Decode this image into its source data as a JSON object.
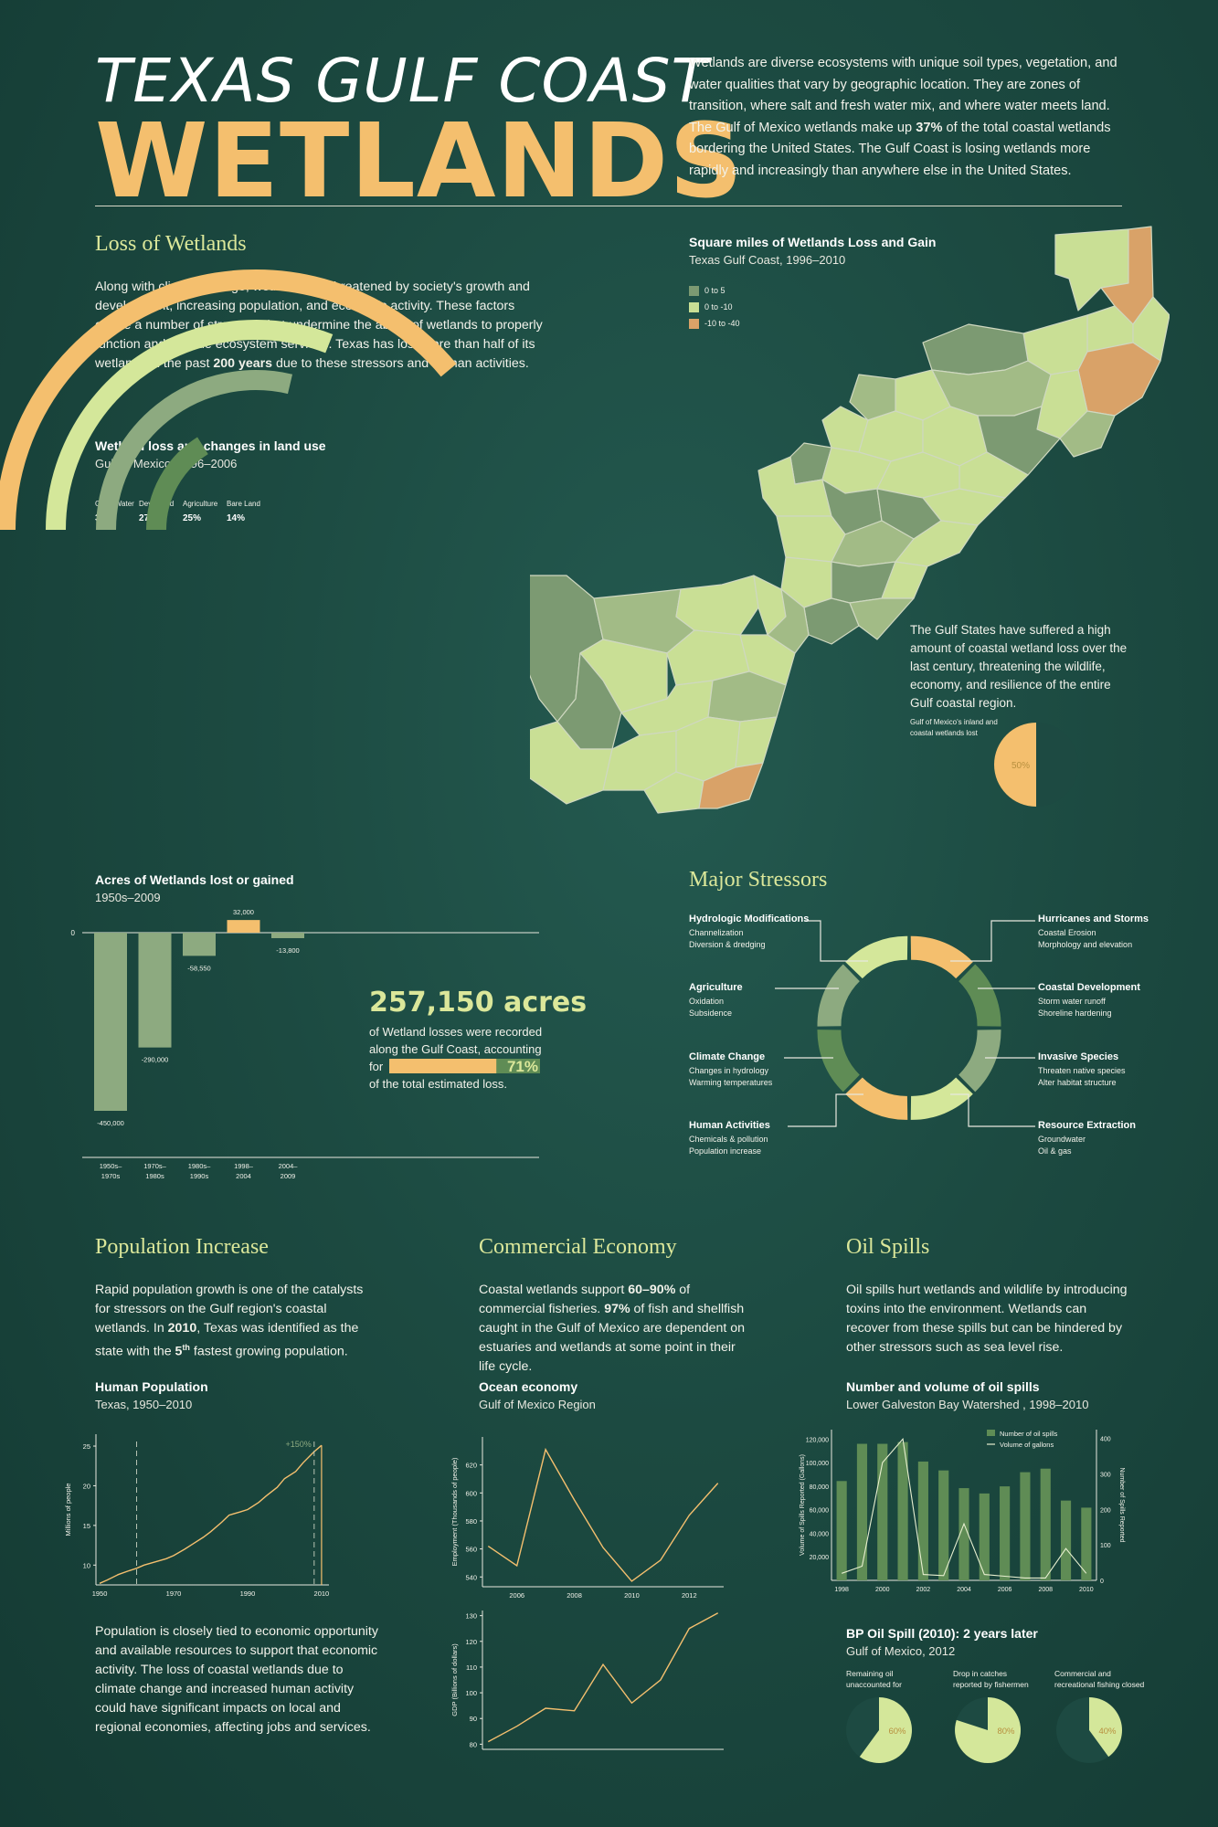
{
  "header": {
    "title_line1": "TEXAS GULF COAST",
    "title_line2": "WETLANDS",
    "intro_part1": "Wetlands are diverse ecosystems with unique soil types, vegetation, and water qualities that vary by geographic location. They are zones of transition, where salt and fresh water mix, and where water meets land. The Gulf of Mexico wetlands make up ",
    "intro_bold": "37%",
    "intro_part2": " of the total coastal wetlands bordering the United States. The Gulf Coast is losing wetlands more rapidly and increasingly than anywhere else in the United States."
  },
  "colors": {
    "background": "#1c4a41",
    "orange": "#f4bf6e",
    "light_green": "#d4e79a",
    "mid_green": "#8daa80",
    "dark_green": "#5f8c55",
    "heading": "#dbe79a"
  },
  "loss": {
    "heading": "Loss of Wetlands",
    "para1": "Along with climate change, wetlands are threatened by society's growth and development, increasing population, and economic activity. These factors create a number of stressors that undermine the ability of wetlands to properly function and provide ecosystem services. Texas has lost more than half of its wetlands in the past ",
    "para_bold": "200 years",
    "para2": " due to these stressors and human activities."
  },
  "map": {
    "title": "Square miles of Wetlands Loss and Gain",
    "subtitle": "Texas Gulf Coast, 1996–2010",
    "legend": [
      {
        "label": "0 to 5",
        "color": "#7c9a72"
      },
      {
        "label": "0 to -10",
        "color": "#c9df95"
      },
      {
        "label": "-10 to -40",
        "color": "#d9a268"
      }
    ],
    "note": "The Gulf States have suffered a high amount of coastal wetland loss over the last century, threatening the wildlife, economy, and resilience of the entire Gulf coastal region."
  },
  "chart_data": [
    {
      "type": "radial-bar",
      "title": "Wetland loss and changes in land use",
      "subtitle": "Gulf of Mexico, 1996–2006",
      "categories": [
        "Open Water",
        "Developed",
        "Agriculture",
        "Bare Land"
      ],
      "values": [
        34,
        27,
        25,
        14
      ],
      "labels": [
        "34%",
        "27%",
        "25%",
        "14%"
      ],
      "colors": [
        "#f4bf6e",
        "#d4e79a",
        "#8daa80",
        "#5f8c55"
      ]
    },
    {
      "type": "bar",
      "title": "Acres of Wetlands lost or gained",
      "subtitle": "1950s–2009",
      "categories": [
        "1950s–1970s",
        "1970s–1980s",
        "1980s–1990s",
        "1998–2004",
        "2004–2009"
      ],
      "values": [
        -450000,
        -290000,
        -58550,
        32000,
        -13800
      ],
      "value_labels": [
        "-450,000",
        "-290,000",
        "-58,550",
        "32,000",
        "-13,800"
      ],
      "zero_label": "0",
      "colors": [
        "#8daa80",
        "#8daa80",
        "#8daa80",
        "#f4bf6e",
        "#8daa80"
      ]
    },
    {
      "type": "pie",
      "title": "Gulf of Mexico's inland and coastal wetlands lost",
      "values": [
        50
      ],
      "labels": [
        "50%"
      ],
      "colors": [
        "#f4bf6e",
        "#1d4a42"
      ]
    },
    {
      "type": "line",
      "title": "Human Population",
      "subtitle": "Texas, 1950–2010",
      "ylabel": "Millions of people",
      "annotation": "+150%",
      "x": [
        1950,
        1952,
        1955,
        1958,
        1960,
        1962,
        1965,
        1968,
        1970,
        1973,
        1975,
        1978,
        1980,
        1983,
        1985,
        1988,
        1990,
        1993,
        1995,
        1998,
        2000,
        2003,
        2005,
        2008,
        2010
      ],
      "y": [
        7.7,
        8.1,
        8.8,
        9.3,
        9.6,
        10.0,
        10.4,
        10.8,
        11.2,
        12.0,
        12.6,
        13.5,
        14.2,
        15.4,
        16.3,
        16.7,
        17.0,
        17.9,
        18.7,
        19.8,
        20.9,
        21.8,
        22.9,
        24.3,
        25.1
      ],
      "xticks": [
        1950,
        1970,
        1990,
        2010
      ],
      "yticks": [
        10,
        15,
        20,
        25
      ],
      "xlim": [
        1949,
        2012
      ],
      "ylim": [
        7.5,
        26.5
      ]
    },
    {
      "type": "line",
      "title": "Ocean economy",
      "subtitle": "Gulf of Mexico Region",
      "ylabel": "Employment (Thousands of people)",
      "x": [
        2005,
        2006,
        2007,
        2008,
        2009,
        2010,
        2011,
        2012,
        2013
      ],
      "y": [
        562,
        548,
        631,
        595,
        561,
        537,
        552,
        584,
        607
      ],
      "xticks": [
        2006,
        2008,
        2010,
        2012
      ],
      "yticks": [
        540,
        560,
        580,
        600,
        620
      ],
      "xlim": [
        2004.8,
        2013.2
      ],
      "ylim": [
        533,
        640
      ]
    },
    {
      "type": "line",
      "ylabel": "GDP (Billions of dollars)",
      "x": [
        2005,
        2006,
        2007,
        2008,
        2009,
        2010,
        2011,
        2012,
        2013
      ],
      "y": [
        81,
        87,
        94,
        93,
        111,
        96,
        105,
        125,
        131
      ],
      "yticks": [
        80,
        90,
        100,
        110,
        120,
        130
      ],
      "xlim": [
        2004.8,
        2013.2
      ],
      "ylim": [
        78,
        132
      ]
    },
    {
      "type": "bar",
      "title": "Number and volume of oil spills",
      "subtitle": "Lower Galveston Bay Watershed , 1998–2010",
      "ylabel_left": "Volume of Spills Reported (Gallons)",
      "ylabel_right": "Number of Spills Reported",
      "x": [
        1998,
        1999,
        2000,
        2001,
        2002,
        2003,
        2004,
        2005,
        2006,
        2007,
        2008,
        2009,
        2010
      ],
      "xticks": [
        1998,
        2000,
        2002,
        2004,
        2006,
        2008,
        2010
      ],
      "series": [
        {
          "name": "Number of oil spills",
          "values": [
            280,
            385,
            385,
            390,
            335,
            310,
            260,
            245,
            265,
            305,
            315,
            225,
            205
          ]
        },
        {
          "name": "Volume of gallons",
          "values": [
            6000,
            12000,
            100000,
            120000,
            5000,
            4000,
            48000,
            5000,
            3500,
            2000,
            2000,
            27000,
            6000
          ]
        }
      ],
      "yticks_left": [
        20000,
        40000,
        60000,
        80000,
        100000,
        120000
      ],
      "yticks_left_labels": [
        "20,000",
        "40,000",
        "60,000",
        "80,000",
        "100,000",
        "120,000"
      ],
      "yticks_right": [
        0,
        100,
        200,
        300,
        400
      ],
      "ylim_left": [
        0,
        128000
      ],
      "ylim_right": [
        0,
        425
      ]
    },
    {
      "type": "pie",
      "title": "BP Oil Spill (2010): 2 years later",
      "subtitle": "Gulf of Mexico, 2012",
      "items": [
        {
          "label": "Remaining oil unaccounted for",
          "value": 60,
          "text": "60%"
        },
        {
          "label": "Drop in catches reported by fishermen",
          "value": 80,
          "text": "80%"
        },
        {
          "label": "Commercial and recreational fishing closed",
          "value": 40,
          "text": "40%"
        }
      ]
    }
  ],
  "acres_callout": {
    "big": "257,150 acres",
    "line1": "of Wetland losses were recorded",
    "line2": "along the Gulf Coast, accounting",
    "for": "for",
    "pct": "71%",
    "pct_value": 71,
    "line3": "of the total estimated loss."
  },
  "stressors": {
    "heading": "Major Stressors",
    "left": [
      {
        "title": "Hydrologic Modifications",
        "l1": "Channelization",
        "l2": "Diversion & dredging"
      },
      {
        "title": "Agriculture",
        "l1": "Oxidation",
        "l2": "Subsidence"
      },
      {
        "title": "Climate Change",
        "l1": "Changes in hydrology",
        "l2": "Warming temperatures"
      },
      {
        "title": "Human Activities",
        "l1": "Chemicals & pollution",
        "l2": "Population increase"
      }
    ],
    "right": [
      {
        "title": "Hurricanes and Storms",
        "l1": "Coastal Erosion",
        "l2": "Morphology and elevation"
      },
      {
        "title": "Coastal Development",
        "l1": "Storm water runoff",
        "l2": "Shoreline hardening"
      },
      {
        "title": "Invasive Species",
        "l1": "Threaten native species",
        "l2": "Alter habitat structure"
      },
      {
        "title": "Resource Extraction",
        "l1": "Groundwater",
        "l2": "Oil & gas"
      }
    ]
  },
  "population": {
    "heading": "Population Increase",
    "p1a": "Rapid population growth is one of the catalysts for stressors on the Gulf region's coastal wetlands. In ",
    "p1b": "2010",
    "p1c": ", Texas was identified as the state with the ",
    "p1d": "5",
    "p1sup": "th",
    "p1e": " fastest growing population.",
    "p2": "Population is closely tied to economic opportunity and available resources to support that economic activity. The loss of coastal wetlands due to climate change and increased human activity could have significant impacts on local and regional economies, affecting jobs and services."
  },
  "economy": {
    "heading": "Commercial Economy",
    "p1a": "Coastal wetlands support ",
    "p1b": "60–90%",
    "p1c": " of commercial fisheries. ",
    "p1d": "97%",
    "p1e": " of fish and shellfish caught in the Gulf of Mexico are dependent on estuaries and wetlands at some point in their life cycle."
  },
  "oil": {
    "heading": "Oil Spills",
    "p1": "Oil spills hurt wetlands and wildlife by introducing toxins into the environment. Wetlands can recover from these spills but can be hindered by other stressors such as sea level rise."
  }
}
